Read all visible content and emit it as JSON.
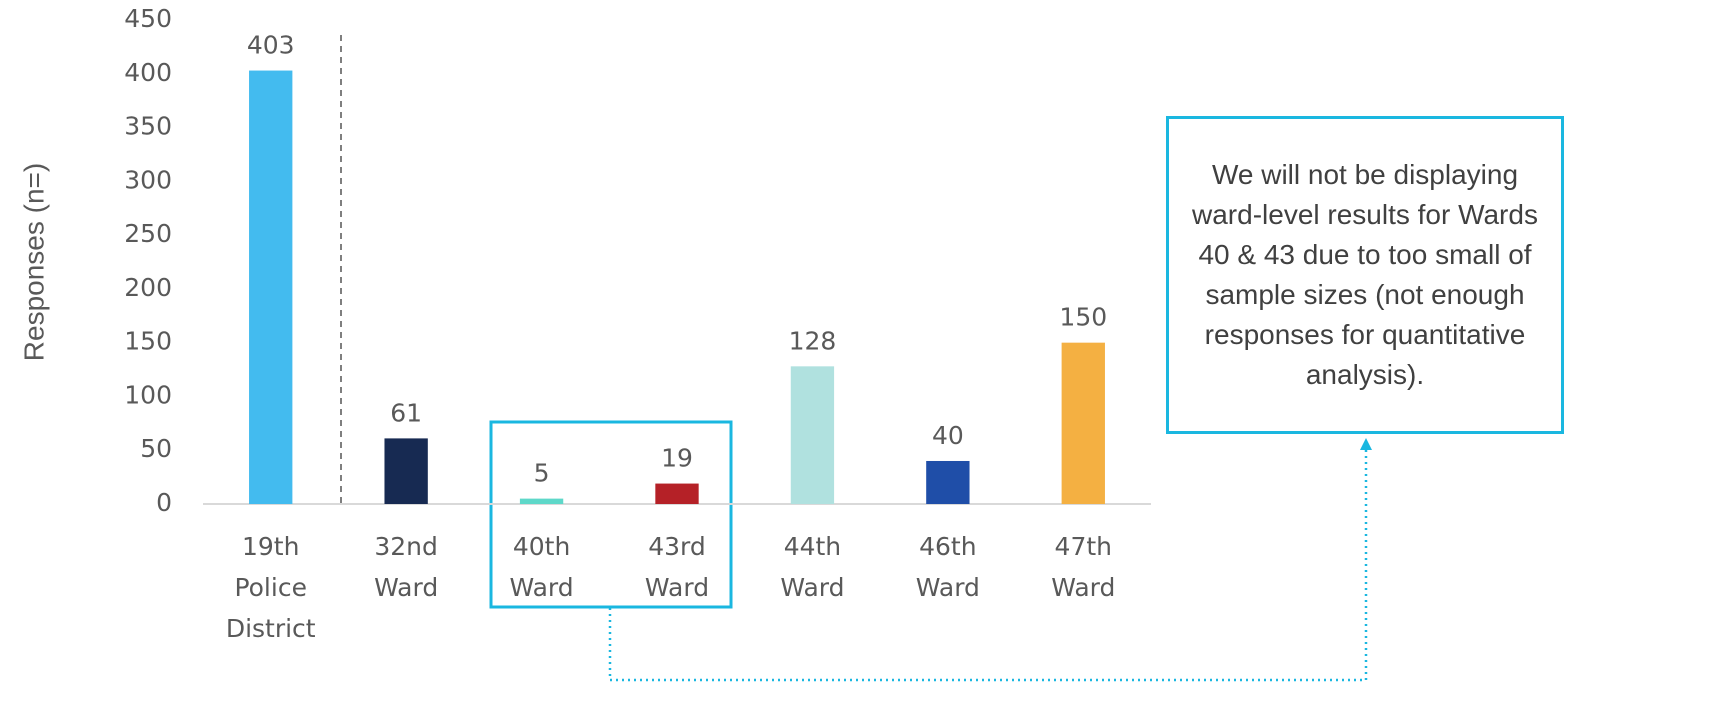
{
  "chart_data": {
    "type": "bar",
    "y_axis_label": "Responses (n=)",
    "categories": [
      "19th Police District",
      "32nd Ward",
      "40th Ward",
      "43rd Ward",
      "44th Ward",
      "46th Ward",
      "47th Ward"
    ],
    "values": [
      403,
      61,
      5,
      19,
      128,
      40,
      150
    ],
    "colors": [
      "#43bbef",
      "#172a52",
      "#5ed8c9",
      "#b52127",
      "#b0e1df",
      "#1f4ea8",
      "#f4b042"
    ],
    "ylim": [
      0,
      450
    ],
    "yticks": [
      0,
      50,
      100,
      150,
      200,
      250,
      300,
      350,
      400,
      450
    ],
    "grid": false,
    "annotation": "We will not be displaying ward-level results for Wards 40 & 43 due to too small of sample sizes (not enough responses for quantitative analysis)."
  }
}
